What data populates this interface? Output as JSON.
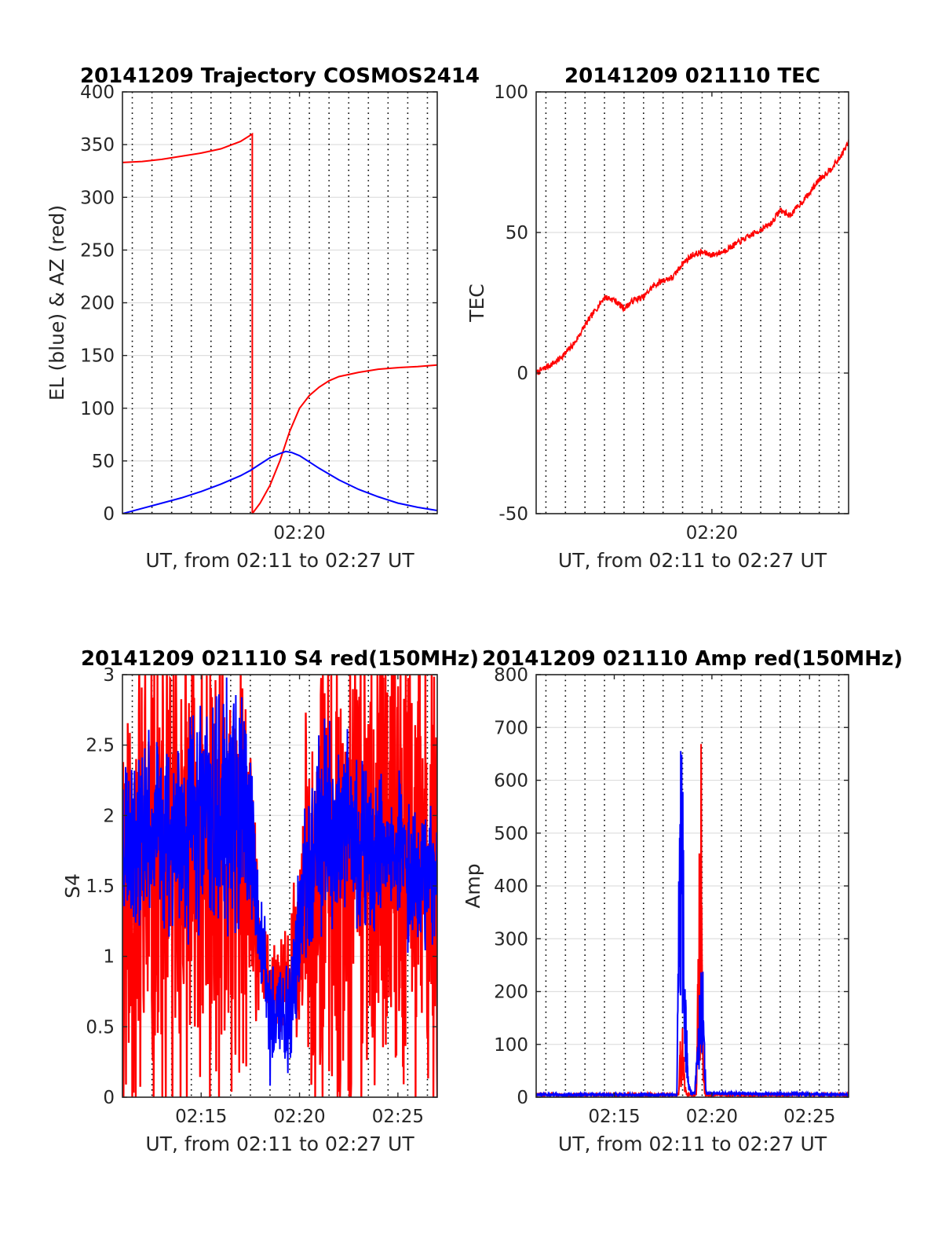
{
  "chart_data": [
    {
      "type": "line",
      "title": "20141209 Trajectory COSMOS2414",
      "xlabel": "UT, from 02:11 to 02:27 UT",
      "ylabel": "EL (blue) & AZ (red)",
      "xlim_min": [
        11,
        27
      ],
      "ylim": [
        0,
        400
      ],
      "yticks": [
        0,
        50,
        100,
        150,
        200,
        250,
        300,
        350,
        400
      ],
      "ytick_labels": [
        "0",
        "50",
        "100",
        "150",
        "200",
        "250",
        "300",
        "350",
        "400"
      ],
      "xticks_min": [
        20
      ],
      "xtick_labels": [
        "02:20"
      ],
      "grid": true,
      "series": [
        {
          "color": "#ff0000",
          "kind": "azimuth",
          "x_min": [
            11.0,
            12.0,
            13.0,
            14.0,
            15.0,
            16.0,
            17.0,
            17.6,
            17.6,
            18.0,
            18.5,
            19.0,
            19.5,
            20.0,
            20.5,
            21.0,
            21.5,
            22.0,
            23.0,
            24.0,
            25.0,
            26.0,
            27.0
          ],
          "y": [
            333,
            334,
            336,
            339,
            342,
            346,
            353,
            360,
            0,
            10,
            27,
            50,
            78,
            100,
            112,
            120,
            126,
            130,
            134,
            137,
            138.5,
            139.5,
            141
          ]
        },
        {
          "color": "#0000ff",
          "kind": "elevation",
          "x_min": [
            11.0,
            12.0,
            13.0,
            14.0,
            15.0,
            16.0,
            17.0,
            17.5,
            18.0,
            18.5,
            19.0,
            19.3,
            19.6,
            20.0,
            20.5,
            21.0,
            22.0,
            23.0,
            24.0,
            25.0,
            26.0,
            27.0
          ],
          "y": [
            0,
            5,
            10,
            15,
            21,
            28,
            36,
            41,
            47,
            53,
            57,
            59,
            58,
            55,
            49,
            43,
            32,
            23,
            16,
            10,
            6,
            3
          ]
        }
      ]
    },
    {
      "type": "line",
      "title": "20141209 021110 TEC",
      "xlabel": "UT, from 02:11 to 02:27 UT",
      "ylabel": "TEC",
      "xlim_min": [
        11,
        27
      ],
      "ylim": [
        -50,
        100
      ],
      "yticks": [
        -50,
        0,
        50,
        100
      ],
      "ytick_labels": [
        "-50",
        "0",
        "50",
        "100"
      ],
      "xticks_min": [
        20
      ],
      "xtick_labels": [
        "02:20"
      ],
      "grid": true,
      "series": [
        {
          "color": "#ff0000",
          "kind": "tec",
          "x_min": [
            11.0,
            11.5,
            12.0,
            12.5,
            13.0,
            13.5,
            14.0,
            14.5,
            15.0,
            15.5,
            16.0,
            16.5,
            17.0,
            17.5,
            18.0,
            18.5,
            19.0,
            19.5,
            20.0,
            20.5,
            21.0,
            21.5,
            22.0,
            22.5,
            23.0,
            23.5,
            24.0,
            24.5,
            25.0,
            25.5,
            26.0,
            26.5,
            27.0
          ],
          "y": [
            0,
            2,
            4,
            7,
            11,
            17,
            22,
            27,
            26,
            23,
            26,
            27,
            31,
            33,
            34,
            39,
            42,
            43,
            42,
            43,
            45,
            47,
            49,
            51,
            53,
            58,
            56,
            60,
            64,
            69,
            72,
            76,
            82
          ]
        }
      ]
    },
    {
      "type": "line",
      "title": "20141209 021110 S4 red(150MHz)",
      "xlabel": "UT, from 02:11 to 02:27 UT",
      "ylabel": "S4",
      "xlim_min": [
        11,
        27
      ],
      "ylim": [
        0,
        3
      ],
      "yticks": [
        0,
        0.5,
        1,
        1.5,
        2,
        2.5,
        3
      ],
      "ytick_labels": [
        "0",
        "0.5",
        "1",
        "1.5",
        "2",
        "2.5",
        "3"
      ],
      "xticks_min": [
        15,
        20,
        25
      ],
      "xtick_labels": [
        "02:15",
        "02:20",
        "02:25"
      ],
      "grid": true,
      "series": [
        {
          "color": "#ff0000",
          "kind": "s4_red",
          "x_min": [
            11.0,
            12.0,
            13.0,
            14.0,
            15.0,
            16.0,
            17.0,
            17.5,
            18.0,
            18.5,
            19.0,
            19.5,
            20.0,
            20.5,
            21.0,
            22.0,
            23.0,
            24.0,
            25.0,
            26.0,
            27.0
          ],
          "y": [
            1.5,
            1.5,
            1.5,
            1.6,
            1.6,
            1.6,
            1.6,
            1.5,
            1.1,
            0.75,
            0.8,
            0.8,
            1.15,
            1.5,
            1.6,
            1.7,
            1.7,
            1.7,
            1.7,
            1.6,
            1.6
          ],
          "spread": [
            1.5,
            1.5,
            1.5,
            1.5,
            1.4,
            1.4,
            1.3,
            1.1,
            0.3,
            0.25,
            0.3,
            0.3,
            0.6,
            1.2,
            1.4,
            1.5,
            1.5,
            1.5,
            1.5,
            1.5,
            1.5
          ]
        },
        {
          "color": "#0000ff",
          "kind": "s4_blue",
          "x_min": [
            11.0,
            12.0,
            13.0,
            14.0,
            15.0,
            16.0,
            17.0,
            17.5,
            18.0,
            18.5,
            19.0,
            19.5,
            20.0,
            20.5,
            21.0,
            22.0,
            23.0,
            24.0,
            25.0,
            26.0,
            27.0
          ],
          "y": [
            1.9,
            1.9,
            1.9,
            1.9,
            2.0,
            2.0,
            2.0,
            1.8,
            1.2,
            0.55,
            0.6,
            0.6,
            1.2,
            1.7,
            1.9,
            1.9,
            1.8,
            1.7,
            1.7,
            1.6,
            1.6
          ],
          "spread": [
            0.5,
            0.5,
            0.5,
            0.6,
            0.7,
            0.7,
            0.7,
            0.5,
            0.3,
            0.35,
            0.4,
            0.4,
            0.35,
            0.5,
            0.6,
            0.6,
            0.5,
            0.45,
            0.45,
            0.4,
            0.4
          ]
        }
      ]
    },
    {
      "type": "line",
      "title": "20141209 021110 Amp red(150MHz)",
      "xlabel": "UT, from 02:11 to 02:27 UT",
      "ylabel": "Amp",
      "xlim_min": [
        11,
        27
      ],
      "ylim": [
        0,
        800
      ],
      "yticks": [
        0,
        100,
        200,
        300,
        400,
        500,
        600,
        700,
        800
      ],
      "ytick_labels": [
        "0",
        "100",
        "200",
        "300",
        "400",
        "500",
        "600",
        "700",
        "800"
      ],
      "xticks_min": [
        15,
        20,
        25
      ],
      "xtick_labels": [
        "02:15",
        "02:20",
        "02:25"
      ],
      "grid": true,
      "series": [
        {
          "color": "#ff0000",
          "kind": "amp_red",
          "x_min": [
            11.0,
            18.3,
            18.38,
            18.42,
            18.5,
            18.6,
            18.7,
            19.2,
            19.3,
            19.35,
            19.4,
            19.45,
            19.55,
            19.65,
            27.0
          ],
          "y": [
            2,
            2,
            150,
            30,
            180,
            40,
            2,
            2,
            300,
            580,
            200,
            720,
            100,
            2,
            2
          ]
        },
        {
          "color": "#0000ff",
          "kind": "amp_blue",
          "x_min": [
            11.0,
            18.2,
            18.3,
            18.4,
            18.5,
            18.6,
            18.7,
            18.8,
            18.95,
            19.1,
            19.3,
            19.4,
            19.5,
            19.6,
            19.7,
            27.0
          ],
          "y": [
            2,
            2,
            400,
            725,
            620,
            300,
            150,
            40,
            5,
            5,
            120,
            320,
            300,
            150,
            5,
            2
          ]
        }
      ]
    }
  ]
}
